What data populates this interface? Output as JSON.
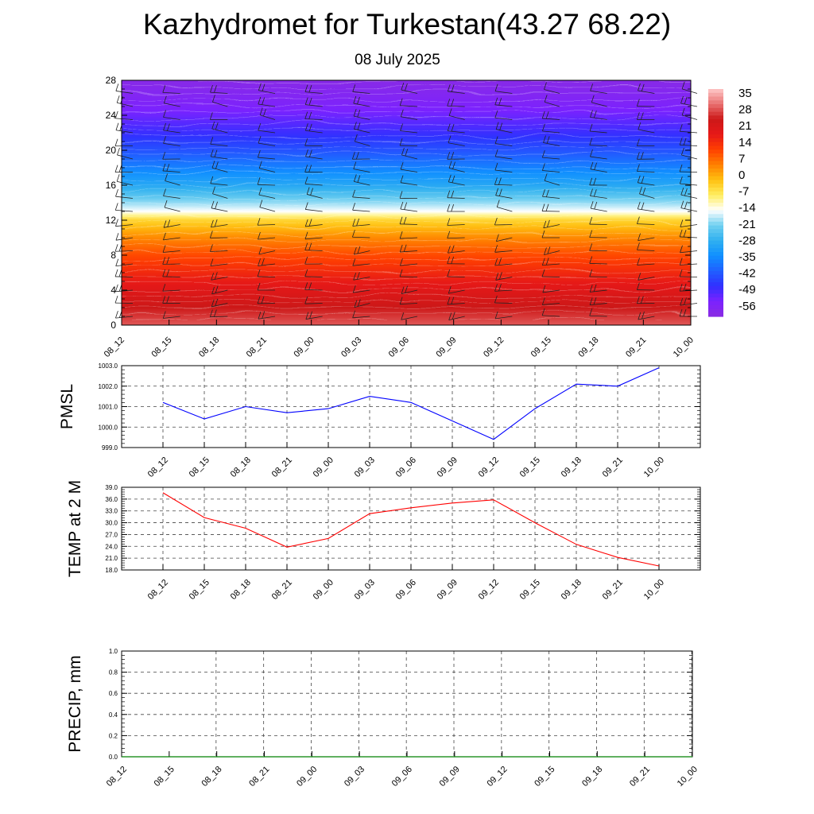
{
  "title": "Kazhydromet for Turkestan(43.27 68.22)",
  "subtitle": "08 July 2025",
  "colors": {
    "pmsl_line": "#0000ff",
    "temp_line": "#ff0000",
    "precip_line": "#008000",
    "grid": "#555555"
  },
  "chart_data": [
    {
      "type": "heatmap",
      "name": "temperature-wind cross-section",
      "x_ticks": [
        "08_12",
        "08_15",
        "08_18",
        "08_21",
        "09_00",
        "09_03",
        "09_06",
        "09_09",
        "09_12",
        "09_15",
        "09_18",
        "09_21",
        "10_00"
      ],
      "y_ticks": [
        "0",
        "4",
        "8",
        "12",
        "16",
        "20",
        "24",
        "28"
      ],
      "ylim": [
        0,
        28
      ],
      "colorbar_labels": [
        "35",
        "28",
        "21",
        "14",
        "7",
        "0",
        "-7",
        "-14",
        "-21",
        "-28",
        "-35",
        "-42",
        "-49",
        "-56"
      ],
      "colorbar_range": [
        -63,
        42
      ],
      "colormap_stops": [
        {
          "v": -63,
          "c": "#8a2be2"
        },
        {
          "v": -56,
          "c": "#7b22ff"
        },
        {
          "v": -49,
          "c": "#3030ff"
        },
        {
          "v": -42,
          "c": "#2060ff"
        },
        {
          "v": -35,
          "c": "#1090ff"
        },
        {
          "v": -28,
          "c": "#30b0f0"
        },
        {
          "v": -21,
          "c": "#70d0f0"
        },
        {
          "v": -14,
          "c": "#ffffff"
        },
        {
          "v": -7,
          "c": "#ffee60"
        },
        {
          "v": 0,
          "c": "#ffc010"
        },
        {
          "v": 7,
          "c": "#ff8000"
        },
        {
          "v": 14,
          "c": "#ff4000"
        },
        {
          "v": 21,
          "c": "#e61818"
        },
        {
          "v": 28,
          "c": "#cc1818"
        },
        {
          "v": 35,
          "c": "#e87070"
        },
        {
          "v": 42,
          "c": "#ffc8c8"
        }
      ],
      "level_temperatures": [
        {
          "y": 0,
          "t": 33
        },
        {
          "y": 2,
          "t": 28
        },
        {
          "y": 4,
          "t": 23
        },
        {
          "y": 6,
          "t": 18
        },
        {
          "y": 8,
          "t": 13
        },
        {
          "y": 10,
          "t": 6
        },
        {
          "y": 12,
          "t": -3
        },
        {
          "y": 13,
          "t": -14
        },
        {
          "y": 16,
          "t": -30
        },
        {
          "y": 20,
          "t": -44
        },
        {
          "y": 22,
          "t": -50
        },
        {
          "y": 25,
          "t": -57
        },
        {
          "y": 28,
          "t": -62
        }
      ],
      "wind_barbs_shown": true,
      "grid": false
    },
    {
      "type": "line",
      "ylabel": "PMSL",
      "x": [
        "08_12",
        "08_15",
        "08_18",
        "08_21",
        "09_00",
        "09_03",
        "09_06",
        "09_09",
        "09_12",
        "09_15",
        "09_18",
        "09_21",
        "10_00"
      ],
      "values": [
        1001.2,
        1000.4,
        1001.0,
        1000.7,
        1000.9,
        1001.5,
        1001.2,
        1000.3,
        999.4,
        1000.9,
        1002.1,
        1002.0,
        1002.9
      ],
      "ylim": [
        999.0,
        1003.0
      ],
      "y_ticks": [
        "999.0",
        "1000.0",
        "1001.0",
        "1002.0",
        "1003.0"
      ],
      "grid": true
    },
    {
      "type": "line",
      "ylabel": "TEMP at 2 M",
      "x": [
        "08_12",
        "08_15",
        "08_18",
        "08_21",
        "09_00",
        "09_03",
        "09_06",
        "09_09",
        "09_12",
        "09_15",
        "09_18",
        "09_21",
        "10_00"
      ],
      "values": [
        37.6,
        31.3,
        28.6,
        23.8,
        26.0,
        32.3,
        33.8,
        35.0,
        35.8,
        30.0,
        24.5,
        21.2,
        19.0
      ],
      "ylim": [
        18.0,
        39.0
      ],
      "y_ticks": [
        "18.0",
        "21.0",
        "24.0",
        "27.0",
        "30.0",
        "33.0",
        "36.0",
        "39.0"
      ],
      "grid": true
    },
    {
      "type": "line",
      "ylabel": "PRECIP, mm",
      "x": [
        "08_12",
        "08_15",
        "08_18",
        "08_21",
        "09_00",
        "09_03",
        "09_06",
        "09_09",
        "09_12",
        "09_15",
        "09_18",
        "09_21",
        "10_00"
      ],
      "values": [
        0,
        0,
        0,
        0,
        0,
        0,
        0,
        0,
        0,
        0,
        0,
        0,
        0
      ],
      "ylim": [
        0.0,
        1.0
      ],
      "y_ticks": [
        "0.0",
        "0.2",
        "0.4",
        "0.6",
        "0.8",
        "1.0"
      ],
      "grid": true
    }
  ]
}
